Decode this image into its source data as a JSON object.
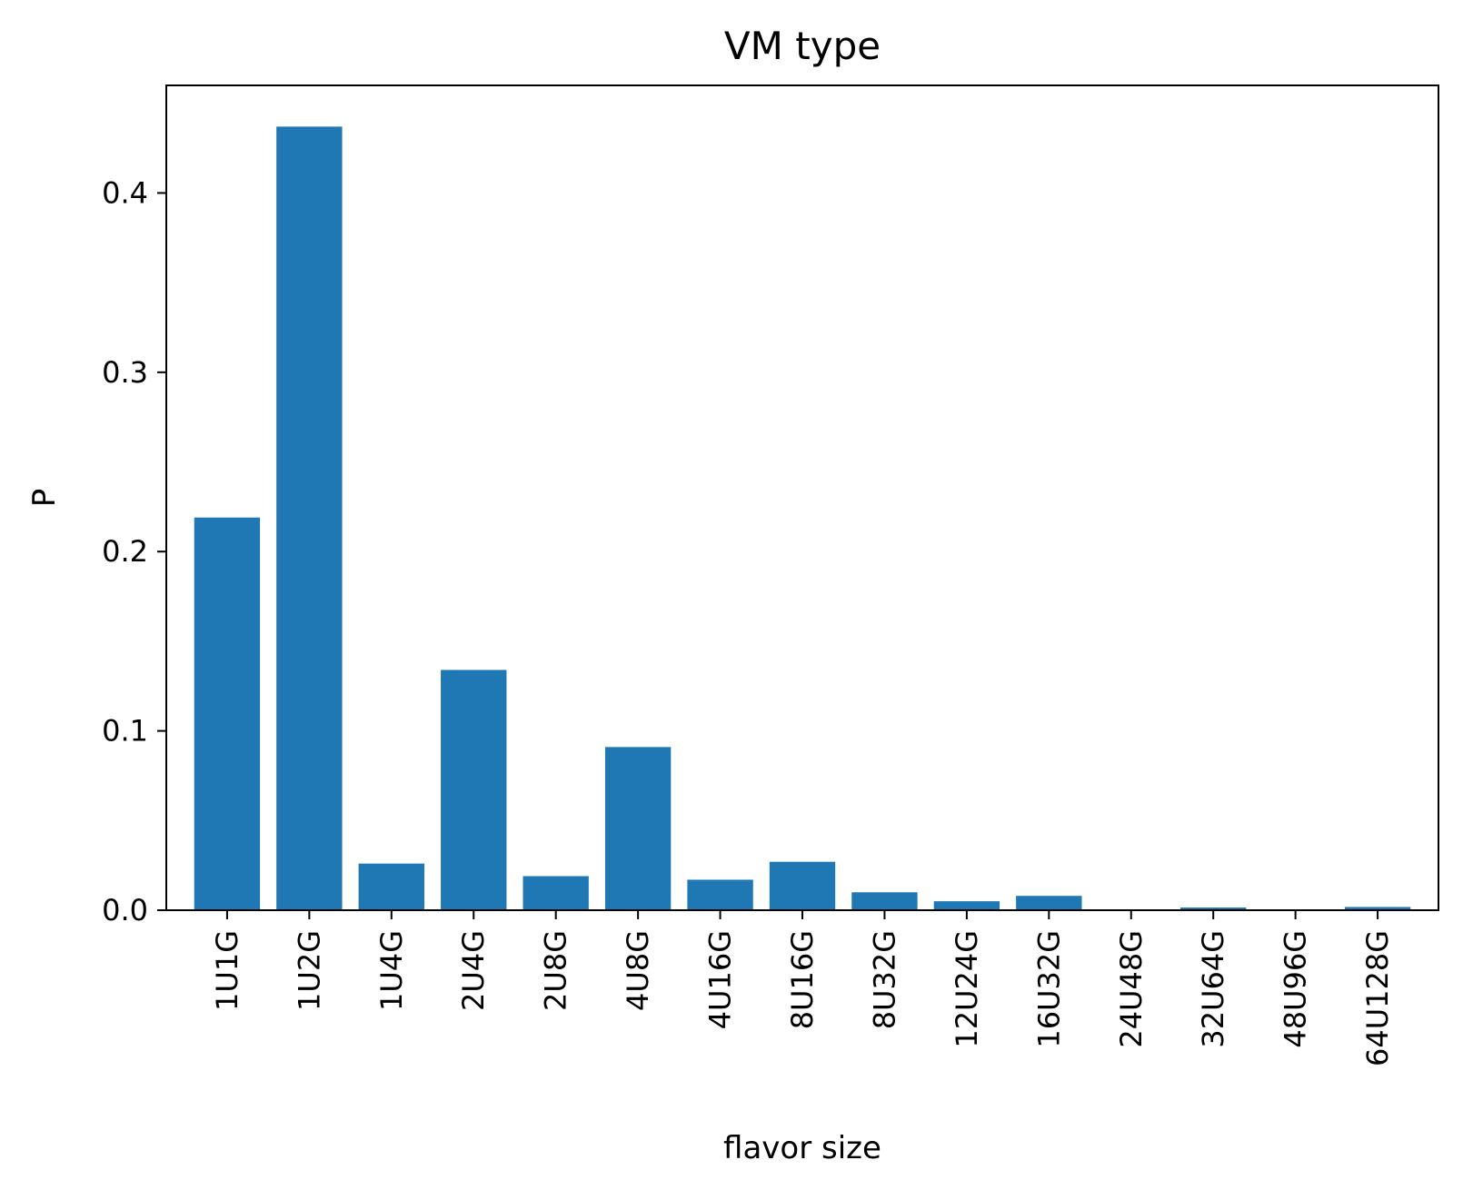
{
  "chart_data": {
    "type": "bar",
    "title": "VM type",
    "xlabel": "flavor size",
    "ylabel": "P",
    "categories": [
      "1U1G",
      "1U2G",
      "1U4G",
      "2U4G",
      "2U8G",
      "4U8G",
      "4U16G",
      "8U16G",
      "8U32G",
      "12U24G",
      "16U32G",
      "24U48G",
      "32U64G",
      "48U96G",
      "64U128G"
    ],
    "values": [
      0.219,
      0.437,
      0.026,
      0.134,
      0.019,
      0.091,
      0.017,
      0.027,
      0.01,
      0.005,
      0.008,
      0.0003,
      0.0015,
      0.0003,
      0.0018
    ],
    "ylim": [
      0,
      0.46
    ],
    "yticks": [
      0.0,
      0.1,
      0.2,
      0.3,
      0.4
    ],
    "ytick_labels": [
      "0.0",
      "0.1",
      "0.2",
      "0.3",
      "0.4"
    ],
    "bar_color": "#1f77b4",
    "grid": false,
    "legend": "none"
  }
}
